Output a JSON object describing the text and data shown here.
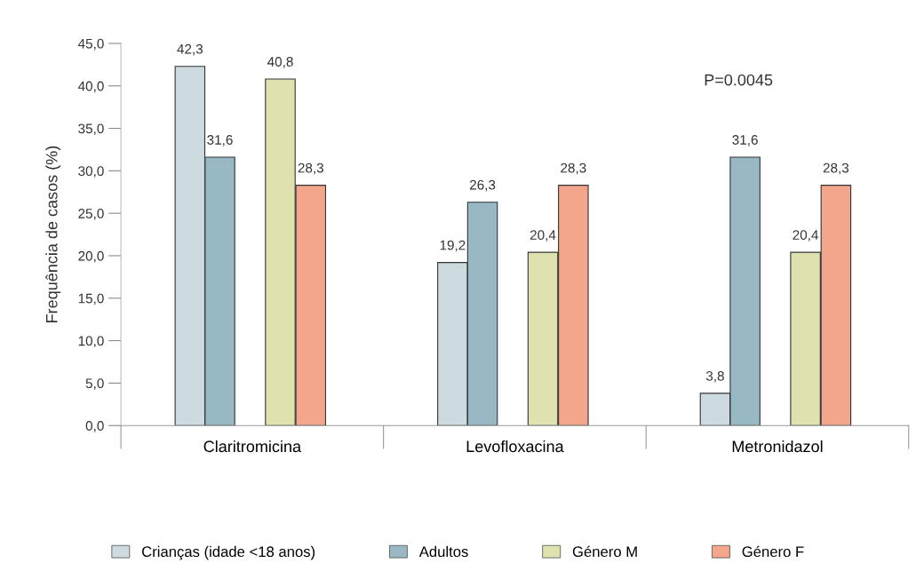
{
  "chart_data": {
    "type": "bar",
    "ylabel": "Frequência de casos (%)",
    "categories": [
      "Claritromicina",
      "Levofloxacina",
      "Metronidazol"
    ],
    "series": [
      {
        "name": "Crianças (idade <18 anos)",
        "color": "#cddae0",
        "values": [
          42.3,
          19.2,
          3.8
        ],
        "value_labels": [
          "42,3",
          "19,2",
          "3,8"
        ]
      },
      {
        "name": "Adultos",
        "color": "#98b9c4",
        "values": [
          31.6,
          26.3,
          31.6
        ],
        "value_labels": [
          "31,6",
          "26,3",
          "31,6"
        ]
      },
      {
        "name": "Género M",
        "color": "#dfe1ae",
        "values": [
          40.8,
          20.4,
          20.4
        ],
        "value_labels": [
          "40,8",
          "20,4",
          "20,4"
        ]
      },
      {
        "name": "Género F",
        "color": "#f3a68b",
        "values": [
          28.3,
          28.3,
          28.3
        ],
        "value_labels": [
          "28,3",
          "28,3",
          "28,3"
        ]
      }
    ],
    "ylim": [
      0,
      45
    ],
    "yticks": [
      {
        "value": 0,
        "label": "0,0"
      },
      {
        "value": 5,
        "label": "5,0"
      },
      {
        "value": 10,
        "label": "10,0"
      },
      {
        "value": 15,
        "label": "15,0"
      },
      {
        "value": 20,
        "label": "20,0"
      },
      {
        "value": 25,
        "label": "25,0"
      },
      {
        "value": 30,
        "label": "30,0"
      },
      {
        "value": 35,
        "label": "35,0"
      },
      {
        "value": 40,
        "label": "40,0"
      },
      {
        "value": 45,
        "label": "45,0"
      }
    ],
    "annotations": [
      "P=0.0045"
    ],
    "grid": false,
    "legend": "bottom"
  }
}
